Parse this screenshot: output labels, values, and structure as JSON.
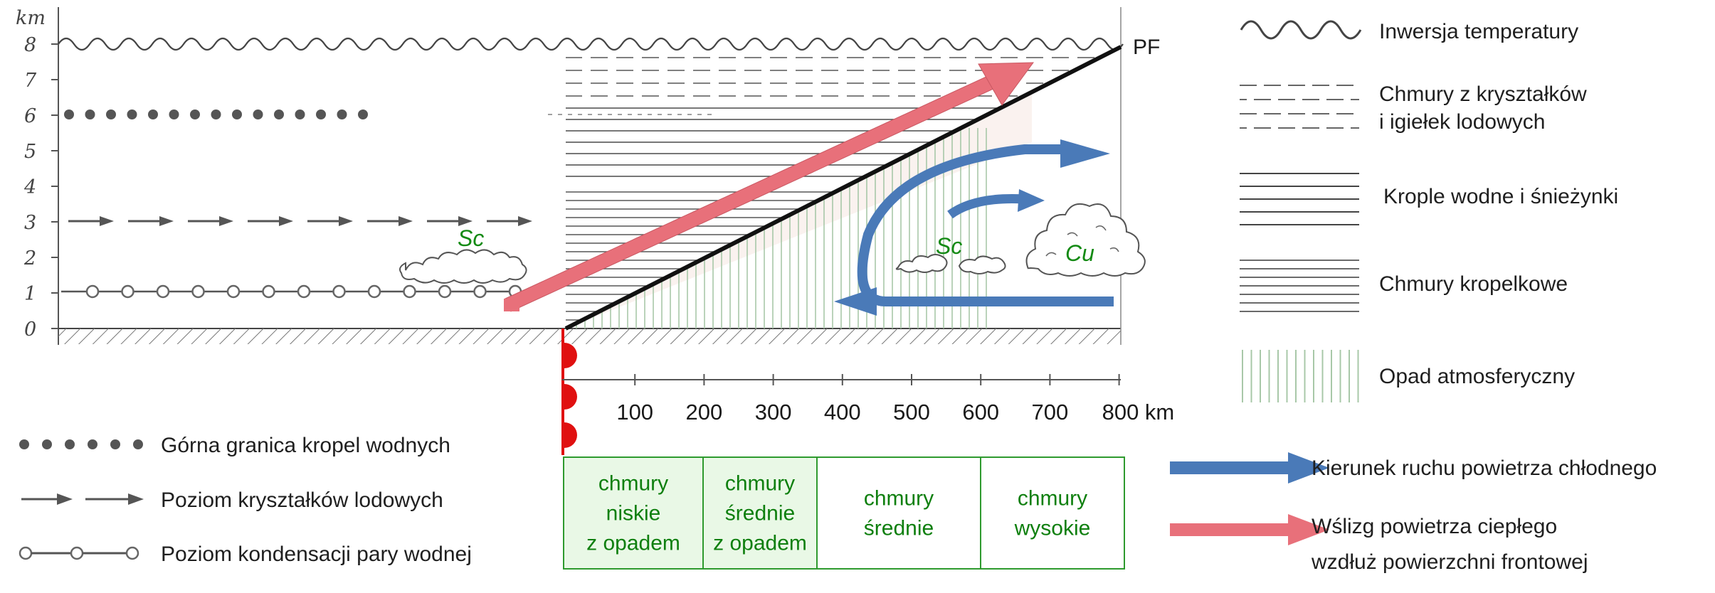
{
  "axis": {
    "unit_label": "km",
    "y_ticks": [
      "8",
      "7",
      "6",
      "5",
      "4",
      "3",
      "2",
      "1",
      "0"
    ],
    "x_ticks": [
      "100",
      "200",
      "300",
      "400",
      "500",
      "600",
      "700",
      "800 km"
    ]
  },
  "front_label": "PF",
  "clouds": {
    "sc_left": "Sc",
    "sc_right": "Sc",
    "cu": "Cu"
  },
  "legend_right": {
    "inversion": "Inwersja temperatury",
    "ice_clouds_1": "Chmury z kryształków",
    "ice_clouds_2": "i igiełek lodowych",
    "drops_snow": "Krople wodne i śnieżynki",
    "droplet_clouds": "Chmury kropelkowe",
    "precip": "Opad atmosferyczny",
    "cold_air": "Kierunek ruchu powietrza chłodnego",
    "warm_air_1": "Wślizg powietrza ciepłego",
    "warm_air_2": "wzdłuż powierzchni frontowej"
  },
  "legend_left": {
    "upper_limit": "Górna granica kropel wodnych",
    "ice_level": "Poziom kryształków lodowych",
    "condensation": "Poziom kondensacji pary wodnej"
  },
  "cloud_boxes": [
    {
      "lines": [
        "chmury",
        "niskie",
        "z opadem"
      ]
    },
    {
      "lines": [
        "chmury",
        "średnie",
        "z opadem"
      ]
    },
    {
      "lines": [
        "chmury",
        "średnie"
      ]
    },
    {
      "lines": [
        "chmury",
        "wysokie"
      ]
    }
  ],
  "colors": {
    "warm_arrow": "#e8707a",
    "cold_arrow": "#4a7ab8",
    "front_marker": "#e01010",
    "box_border": "#2e9a2e",
    "box_fill": "#e9f8e6",
    "label_green": "#138a13"
  }
}
